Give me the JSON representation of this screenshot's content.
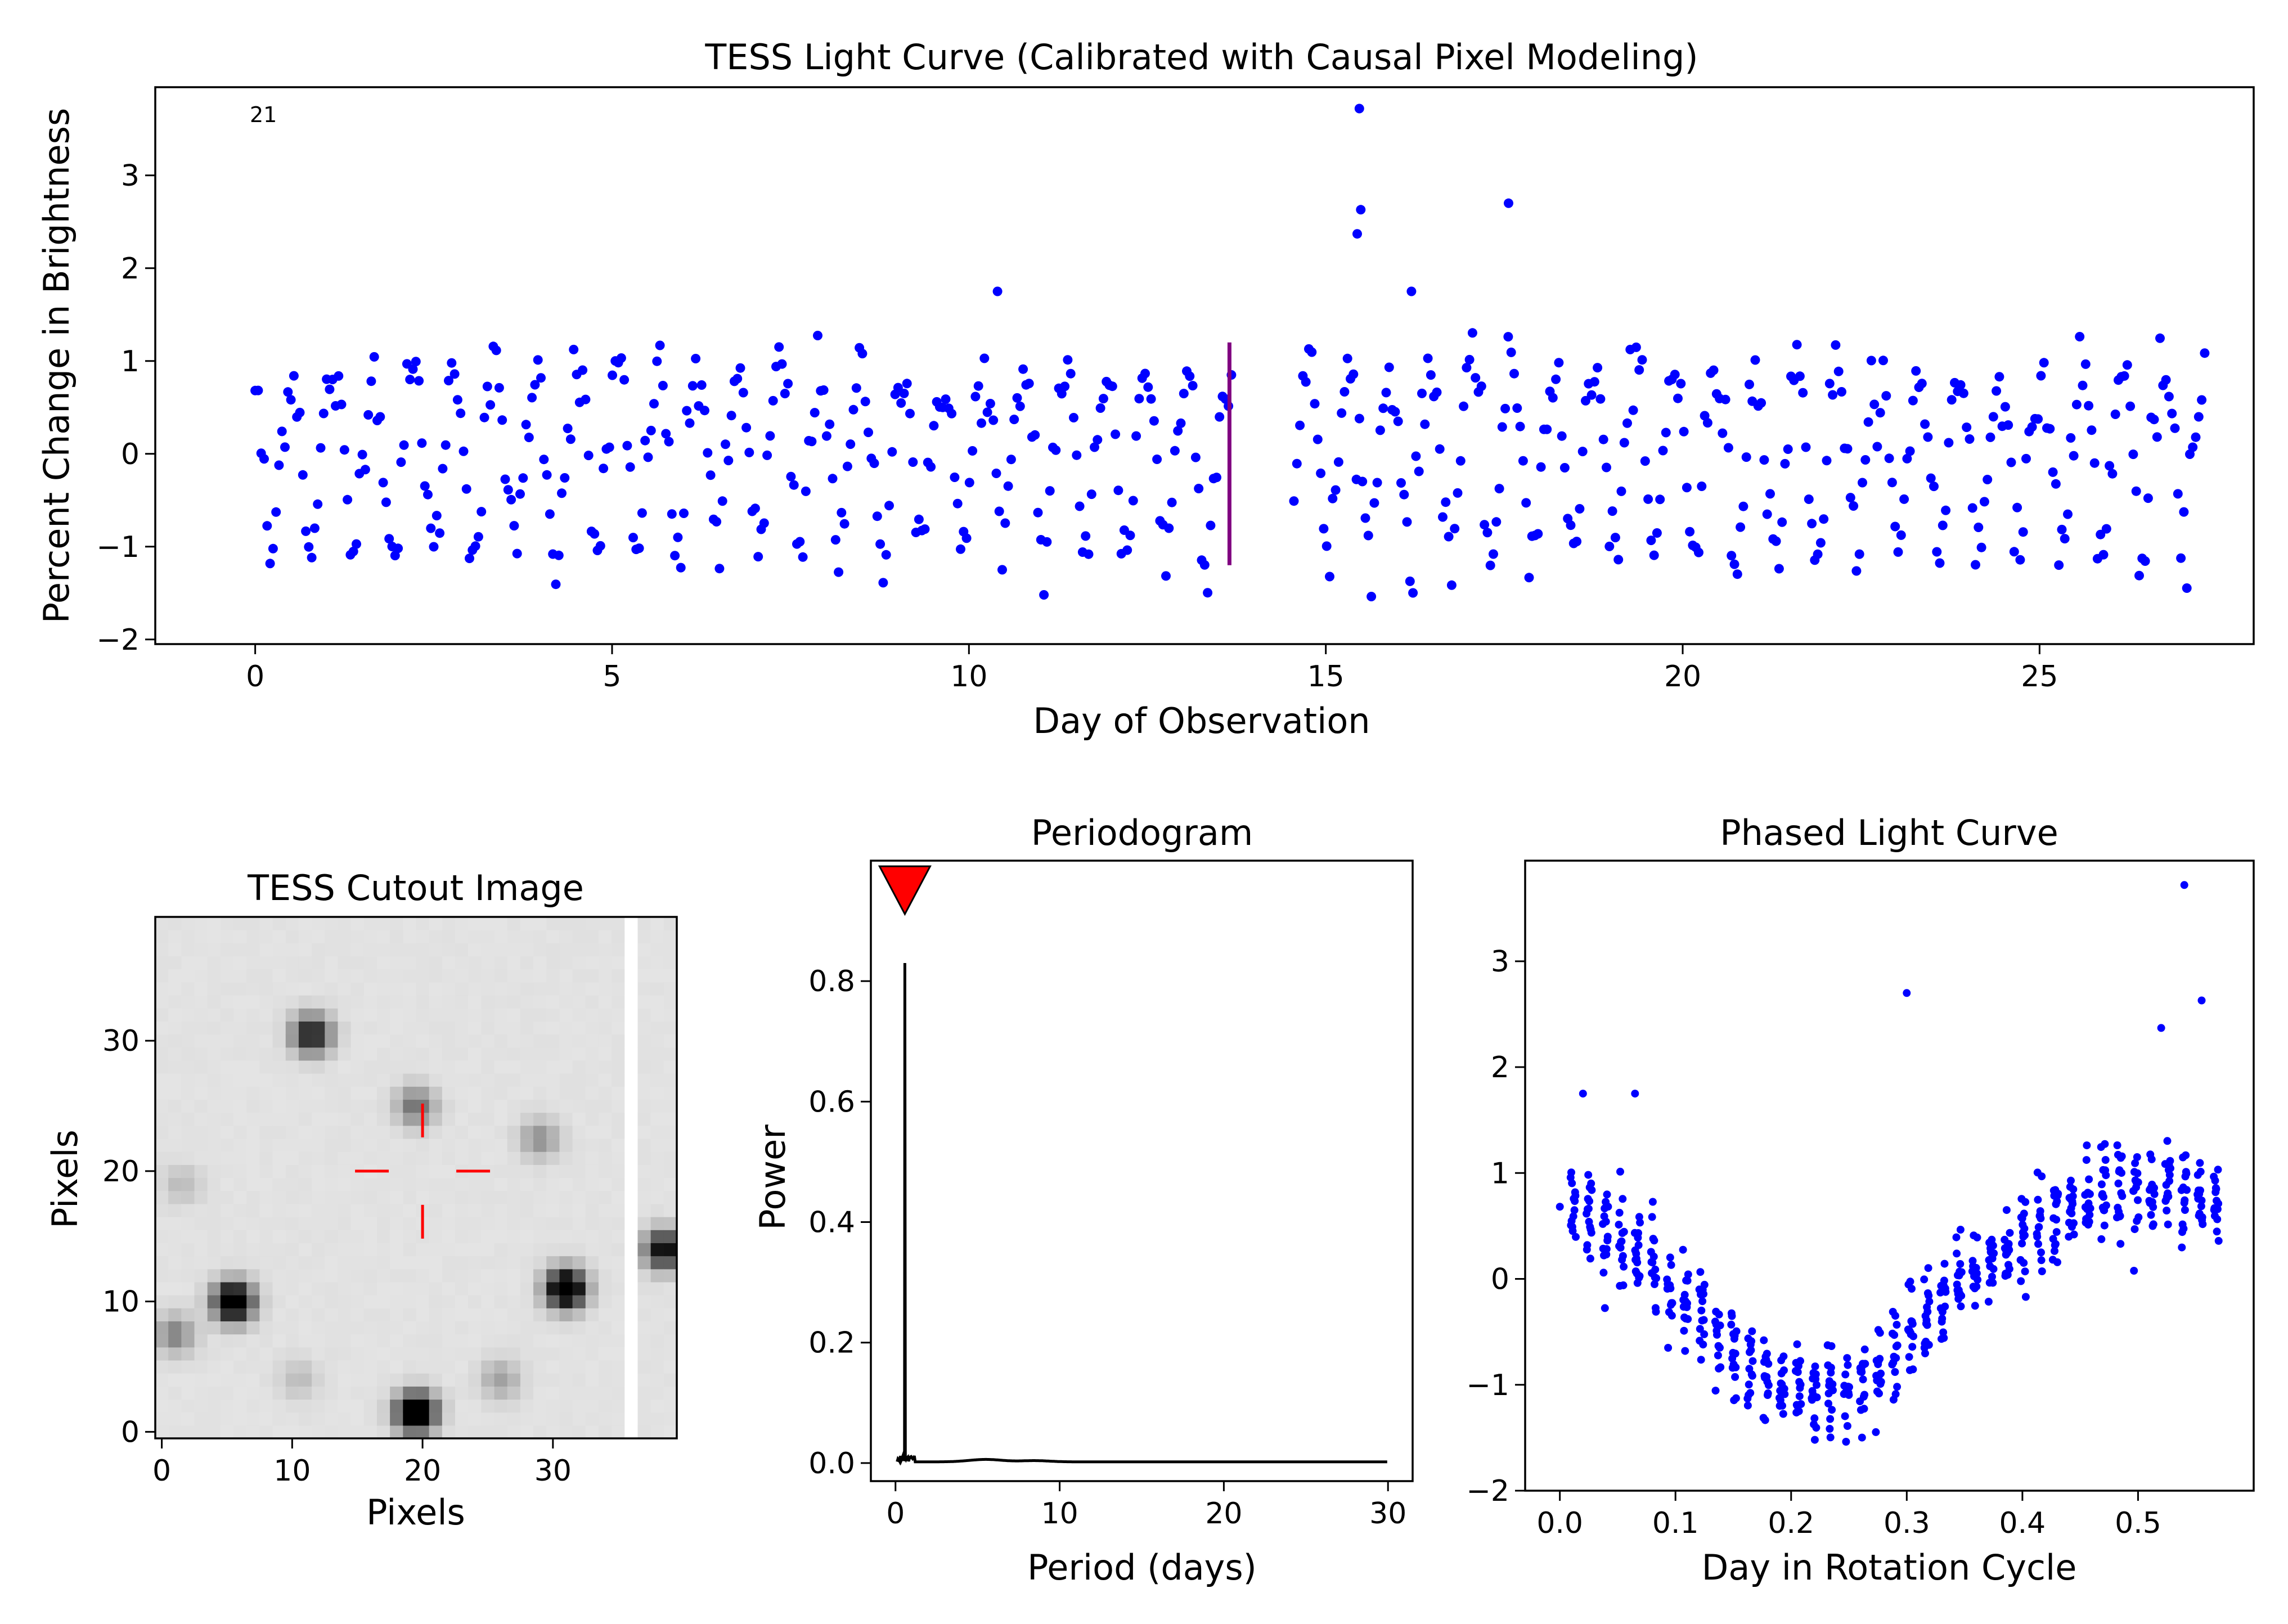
{
  "charts": {
    "lightcurve": {
      "type": "scatter",
      "title": "TESS Light Curve (Calibrated with Causal Pixel Modeling)",
      "xlabel": "Day of Observation",
      "ylabel": "Percent Change in Brightness",
      "xlim": [
        -1.4,
        28.0
      ],
      "ylim": [
        -2.05,
        3.95
      ],
      "xticks": [
        0,
        5,
        10,
        15,
        20,
        25
      ],
      "yticks": [
        -2,
        -1,
        0,
        1,
        2,
        3
      ],
      "annotation": "21",
      "color": "#0000ff",
      "marker_line": {
        "x": 13.65,
        "y": [
          -1.2,
          1.2
        ],
        "color": "#800080"
      },
      "period_days": 0.57
    },
    "cutout": {
      "type": "heatmap",
      "title": "TESS Cutout Image",
      "xlabel": "Pixels",
      "ylabel": "Pixels",
      "xticks": [
        0,
        10,
        20,
        30
      ],
      "yticks": [
        0,
        10,
        20,
        30
      ],
      "size": 40,
      "target": [
        20,
        20
      ],
      "crosshair_color": "#ff0000",
      "stars": [
        {
          "x": 20,
          "y": 2,
          "brightness": 1.0
        },
        {
          "x": 6,
          "y": 10.5,
          "brightness": 0.95
        },
        {
          "x": 31.5,
          "y": 11.5,
          "brightness": 0.95
        },
        {
          "x": 12,
          "y": 31,
          "brightness": 0.65
        },
        {
          "x": 20,
          "y": 25.5,
          "brightness": 0.35
        },
        {
          "x": 39,
          "y": 14.5,
          "brightness": 0.7
        },
        {
          "x": 29.5,
          "y": 23,
          "brightness": 0.25
        },
        {
          "x": 1.5,
          "y": 8,
          "brightness": 0.3
        },
        {
          "x": 26.5,
          "y": 4.5,
          "brightness": 0.2
        },
        {
          "x": 11,
          "y": 4.5,
          "brightness": 0.12
        },
        {
          "x": 2,
          "y": 19.5,
          "brightness": 0.12
        }
      ],
      "white_column": 36
    },
    "periodogram": {
      "type": "line",
      "title": "Periodogram",
      "xlabel": "Period (days)",
      "ylabel": "Power",
      "xlim": [
        -1.5,
        31.5
      ],
      "ylim": [
        -0.03,
        1.0
      ],
      "xticks": [
        0,
        10,
        20,
        30
      ],
      "yticks": [
        0.0,
        0.2,
        0.4,
        0.6,
        0.8
      ],
      "peak": {
        "x": 0.57,
        "y": 0.83
      },
      "marker": {
        "x": 0.57,
        "color": "#ff0000"
      },
      "color": "#000000"
    },
    "phased": {
      "type": "scatter",
      "title": "Phased Light Curve",
      "xlabel": "Day in Rotation Cycle",
      "ylabel": "",
      "xlim": [
        -0.03,
        0.6
      ],
      "ylim": [
        -2.0,
        3.95
      ],
      "xticks": [
        0.0,
        0.1,
        0.2,
        0.3,
        0.4,
        0.5
      ],
      "yticks": [
        -2,
        -1,
        0,
        1,
        2,
        3
      ],
      "color": "#0000ff"
    }
  }
}
